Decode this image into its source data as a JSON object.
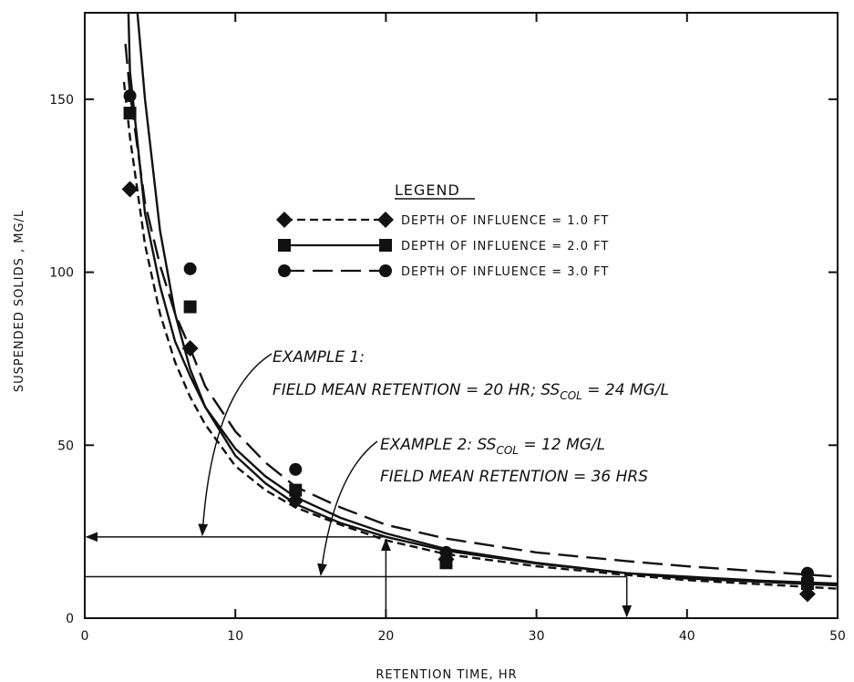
{
  "chart_data": {
    "type": "line",
    "title": "",
    "xlabel": "RETENTION TIME,  HR",
    "ylabel": "SUSPENDED SOLIDS , MG/L",
    "xlim": [
      0,
      50
    ],
    "ylim": [
      0,
      175
    ],
    "x_ticks": [
      0,
      10,
      20,
      30,
      40,
      50
    ],
    "y_ticks": [
      0,
      50,
      100,
      150
    ],
    "grid": false,
    "legend_position": "upper-right",
    "legend_title": "LEGEND",
    "colors": {
      "ink": "#111111",
      "background": "#ffffff"
    },
    "series": [
      {
        "name": "DEPTH OF INFLUENCE = 1.0 FT",
        "marker": "diamond",
        "line_style": "short-dash",
        "points": [
          [
            3,
            124
          ],
          [
            7,
            78
          ],
          [
            14,
            34
          ],
          [
            24,
            17
          ],
          [
            48,
            7
          ]
        ],
        "fit_curve": {
          "x": [
            2.6,
            3,
            4,
            5,
            6,
            7,
            8,
            10,
            12,
            14,
            17,
            20,
            24,
            30,
            36,
            40,
            45,
            50
          ],
          "y": [
            155,
            139,
            108,
            88,
            74,
            64,
            56,
            44,
            37,
            32,
            27,
            22.5,
            18.5,
            15,
            12.5,
            11,
            9.8,
            8.5
          ]
        }
      },
      {
        "name": "DEPTH OF INFLUENCE = 2.0 FT",
        "marker": "square",
        "line_style": "solid",
        "points": [
          [
            3,
            146
          ],
          [
            7,
            90
          ],
          [
            14,
            37
          ],
          [
            24,
            16
          ],
          [
            48,
            10
          ]
        ],
        "fit_curve": {
          "x": [
            2.9,
            3,
            4,
            5,
            6,
            7,
            8,
            10,
            12,
            14,
            17,
            20,
            24,
            30,
            36,
            40,
            45,
            50
          ],
          "y": [
            175,
            158,
            117,
            96,
            80,
            70,
            61,
            49,
            41,
            35,
            29,
            24.5,
            20,
            16,
            13,
            12,
            10.8,
            10
          ]
        }
      },
      {
        "name": "DEPTH OF INFLUENCE = 3.0 FT",
        "marker": "circle",
        "line_style": "long-dash",
        "points": [
          [
            3,
            151
          ],
          [
            7,
            101
          ],
          [
            14,
            43
          ],
          [
            24,
            19
          ],
          [
            48,
            13
          ]
        ],
        "fit_curve": {
          "x": [
            2.7,
            3,
            4,
            5,
            6,
            7,
            8,
            10,
            12,
            14,
            17,
            20,
            24,
            30,
            36,
            40,
            45,
            50
          ],
          "y": [
            166,
            152,
            120,
            102,
            88,
            78,
            67,
            54,
            45,
            38,
            32,
            27,
            23,
            19,
            16.5,
            15,
            13.5,
            12
          ]
        }
      }
    ],
    "extra_curves": [
      {
        "line_style": "solid",
        "x": [
          3.5,
          4,
          5,
          6,
          7,
          8,
          10,
          12,
          14,
          17,
          20,
          24,
          30,
          36,
          40,
          45,
          50
        ],
        "y": [
          175,
          150,
          112,
          88,
          72,
          61,
          47,
          39,
          33,
          27.5,
          23.5,
          19.5,
          15.8,
          13,
          11.5,
          10.5,
          9.5
        ]
      }
    ],
    "annotations": [
      {
        "id": "example1",
        "line1": "EXAMPLE 1:",
        "line2": "FIELD MEAN RETENTION = 20 HR;  ",
        "line2_tail_ss": "SS",
        "line2_tail_sub": "COL",
        "line2_tail_rest": " = 24 MG/L",
        "level_y": 23.5,
        "retention_x": 20
      },
      {
        "id": "example2",
        "line1_prefix": "EXAMPLE 2:  ",
        "line1_ss": "SS",
        "line1_sub": "COL",
        "line1_rest": " = 12 MG/L",
        "line2": "FIELD MEAN RETENTION = 36 HRS",
        "level_y": 12,
        "retention_x": 36
      }
    ]
  }
}
